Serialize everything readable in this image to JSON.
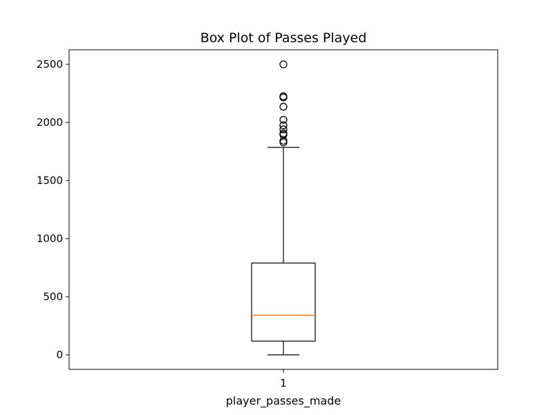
{
  "chart_data": {
    "type": "box",
    "title": "Box Plot of Passes Played",
    "xlabel": "player_passes_made",
    "ylabel": "",
    "categories": [
      "1"
    ],
    "ylim": [
      -125,
      2625
    ],
    "yticks": [
      0,
      500,
      1000,
      1500,
      2000,
      2500
    ],
    "ytick_labels": [
      "0",
      "500",
      "1000",
      "1500",
      "2000",
      "2500"
    ],
    "grid": false,
    "series": [
      {
        "whisker_low": 0,
        "q1": 118,
        "median": 340,
        "q3": 790,
        "whisker_high": 1785,
        "outliers": [
          1828,
          1843,
          1893,
          1905,
          1940,
          1975,
          2022,
          2135,
          2215,
          2225,
          2500
        ]
      }
    ],
    "colors": {
      "box": "#000000",
      "median": "#ff7f0e",
      "whisker": "#000000",
      "outlier": "#000000"
    }
  }
}
